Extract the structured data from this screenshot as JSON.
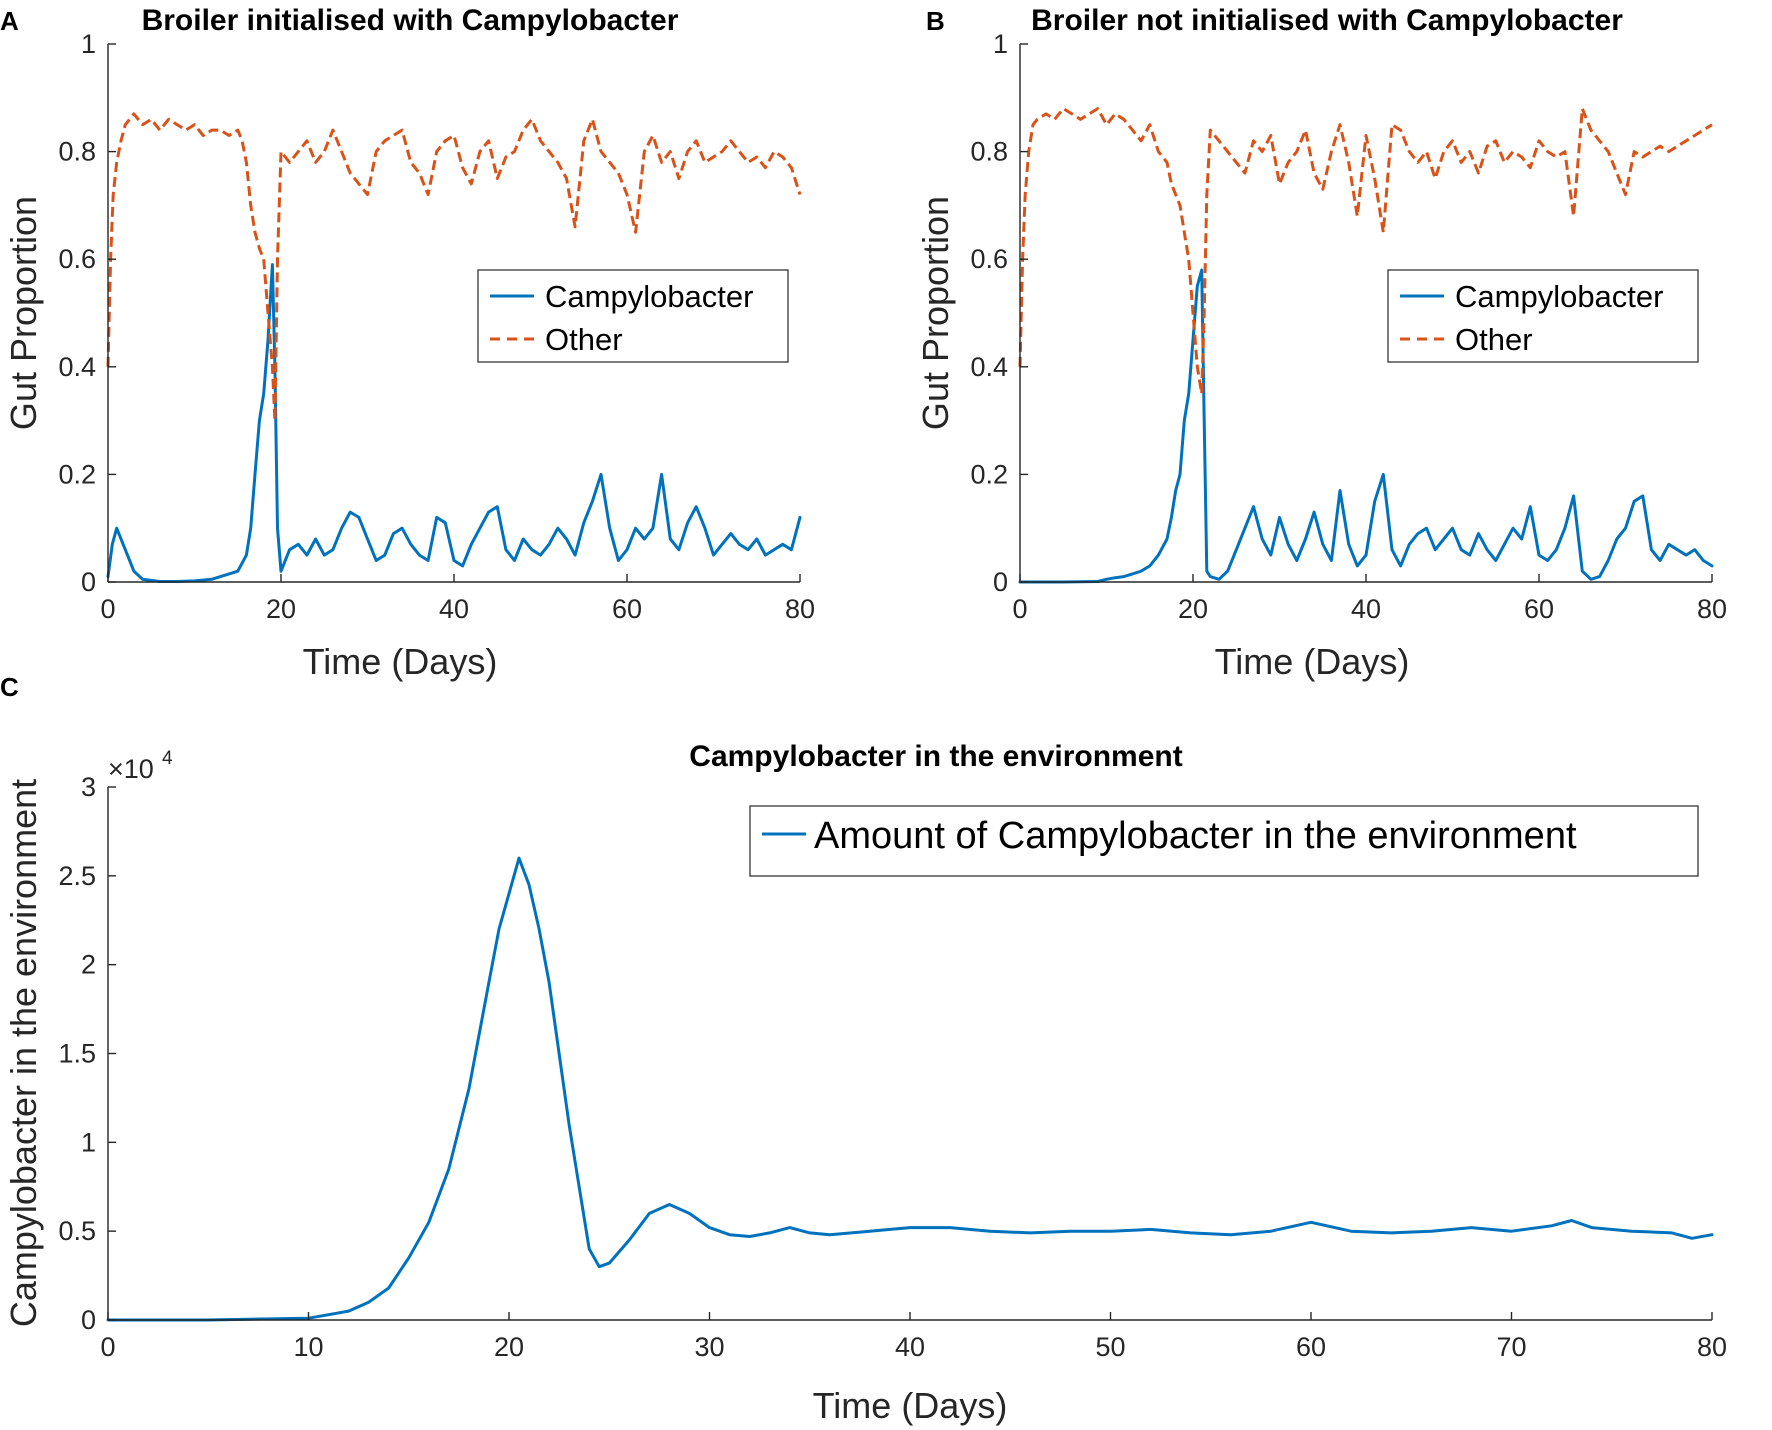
{
  "panels": {
    "a": {
      "letter": "A",
      "title": "Broiler initialised with Campylobacter"
    },
    "b": {
      "letter": "B",
      "title": "Broiler not initialised with Campylobacter"
    },
    "c": {
      "letter": "C",
      "title": "Campylobacter in the environment"
    }
  },
  "colors": {
    "campylobacter": "#0072BD",
    "other": "#D95319"
  },
  "chart_data": [
    {
      "id": "A",
      "type": "line",
      "title": "Broiler initialised with Campylobacter",
      "xlabel": "Time (Days)",
      "ylabel": "Gut Proportion",
      "xlim": [
        0,
        80
      ],
      "ylim": [
        0,
        1
      ],
      "xticks": [
        0,
        20,
        40,
        60,
        80
      ],
      "yticks": [
        0,
        0.2,
        0.4,
        0.6,
        0.8,
        1
      ],
      "ytick_labels": [
        "0",
        "0.2",
        "0.4",
        "0.6",
        "0.8",
        "1"
      ],
      "legend_position": "center-right",
      "series": [
        {
          "name": "Campylobacter",
          "style": "solid",
          "x": [
            0,
            0.5,
            1,
            2,
            3,
            4,
            6,
            8,
            10,
            12,
            13,
            14,
            15,
            16,
            16.5,
            17,
            17.5,
            18,
            18.5,
            19,
            19.3,
            19.6,
            20,
            21,
            22,
            23,
            24,
            25,
            26,
            27,
            28,
            29,
            30,
            31,
            32,
            33,
            34,
            35,
            36,
            37,
            38,
            39,
            40,
            41,
            42,
            43,
            44,
            45,
            46,
            47,
            48,
            49,
            50,
            51,
            52,
            53,
            54,
            55,
            56,
            57,
            58,
            59,
            60,
            61,
            62,
            63,
            64,
            65,
            66,
            67,
            68,
            69,
            70,
            71,
            72,
            73,
            74,
            75,
            76,
            77,
            78,
            79,
            80
          ],
          "values": [
            0.01,
            0.07,
            0.1,
            0.06,
            0.02,
            0.005,
            0.001,
            0.001,
            0.002,
            0.005,
            0.01,
            0.015,
            0.02,
            0.05,
            0.1,
            0.2,
            0.3,
            0.35,
            0.45,
            0.59,
            0.4,
            0.1,
            0.02,
            0.06,
            0.07,
            0.05,
            0.08,
            0.05,
            0.06,
            0.1,
            0.13,
            0.12,
            0.08,
            0.04,
            0.05,
            0.09,
            0.1,
            0.07,
            0.05,
            0.04,
            0.12,
            0.11,
            0.04,
            0.03,
            0.07,
            0.1,
            0.13,
            0.14,
            0.06,
            0.04,
            0.08,
            0.06,
            0.05,
            0.07,
            0.1,
            0.08,
            0.05,
            0.11,
            0.15,
            0.2,
            0.1,
            0.04,
            0.06,
            0.1,
            0.08,
            0.1,
            0.2,
            0.08,
            0.06,
            0.11,
            0.14,
            0.1,
            0.05,
            0.07,
            0.09,
            0.07,
            0.06,
            0.08,
            0.05,
            0.06,
            0.07,
            0.06,
            0.12
          ]
        },
        {
          "name": "Other",
          "style": "dashed",
          "x": [
            0,
            0.3,
            0.6,
            1,
            1.5,
            2,
            3,
            4,
            5,
            6,
            7,
            8,
            9,
            10,
            11,
            12,
            13,
            14,
            15,
            15.5,
            16,
            16.5,
            17,
            17.5,
            18,
            18.5,
            19,
            19.3,
            19.6,
            20,
            21,
            22,
            23,
            24,
            25,
            26,
            27,
            28,
            29,
            30,
            31,
            32,
            33,
            34,
            35,
            36,
            37,
            38,
            39,
            40,
            41,
            42,
            43,
            44,
            45,
            46,
            47,
            48,
            49,
            50,
            51,
            52,
            53,
            54,
            55,
            56,
            57,
            58,
            59,
            60,
            61,
            62,
            63,
            64,
            65,
            66,
            67,
            68,
            69,
            70,
            71,
            72,
            73,
            74,
            75,
            76,
            77,
            78,
            79,
            80
          ],
          "values": [
            0.4,
            0.6,
            0.72,
            0.78,
            0.82,
            0.85,
            0.87,
            0.85,
            0.86,
            0.84,
            0.86,
            0.85,
            0.84,
            0.85,
            0.83,
            0.84,
            0.84,
            0.83,
            0.84,
            0.82,
            0.78,
            0.7,
            0.65,
            0.62,
            0.6,
            0.5,
            0.4,
            0.3,
            0.6,
            0.8,
            0.78,
            0.8,
            0.82,
            0.78,
            0.8,
            0.84,
            0.8,
            0.76,
            0.74,
            0.72,
            0.8,
            0.82,
            0.83,
            0.84,
            0.78,
            0.76,
            0.72,
            0.8,
            0.82,
            0.83,
            0.77,
            0.74,
            0.8,
            0.82,
            0.75,
            0.79,
            0.8,
            0.84,
            0.86,
            0.82,
            0.8,
            0.78,
            0.75,
            0.66,
            0.82,
            0.86,
            0.8,
            0.78,
            0.76,
            0.72,
            0.65,
            0.8,
            0.83,
            0.78,
            0.8,
            0.75,
            0.8,
            0.82,
            0.78,
            0.79,
            0.8,
            0.82,
            0.8,
            0.78,
            0.79,
            0.77,
            0.8,
            0.79,
            0.77,
            0.72
          ]
        }
      ]
    },
    {
      "id": "B",
      "type": "line",
      "title": "Broiler not initialised with Campylobacter",
      "xlabel": "Time (Days)",
      "ylabel": "Gut Proportion",
      "xlim": [
        0,
        80
      ],
      "ylim": [
        0,
        1
      ],
      "xticks": [
        0,
        20,
        40,
        60,
        80
      ],
      "yticks": [
        0,
        0.2,
        0.4,
        0.6,
        0.8,
        1
      ],
      "ytick_labels": [
        "0",
        "0.2",
        "0.4",
        "0.6",
        "0.8",
        "1"
      ],
      "legend_position": "center-right",
      "series": [
        {
          "name": "Campylobacter",
          "style": "solid",
          "x": [
            0,
            5,
            9,
            10,
            11,
            12,
            13,
            14,
            15,
            16,
            17,
            17.5,
            18,
            18.5,
            19,
            19.5,
            20,
            20.5,
            21,
            21.3,
            21.6,
            22,
            23,
            24,
            25,
            26,
            27,
            28,
            29,
            30,
            31,
            32,
            33,
            34,
            35,
            36,
            37,
            38,
            39,
            40,
            41,
            42,
            43,
            44,
            45,
            46,
            47,
            48,
            49,
            50,
            51,
            52,
            53,
            54,
            55,
            56,
            57,
            58,
            59,
            60,
            61,
            62,
            63,
            64,
            65,
            66,
            67,
            68,
            69,
            70,
            71,
            72,
            73,
            74,
            75,
            76,
            77,
            78,
            79,
            80
          ],
          "values": [
            0,
            0,
            0.001,
            0.005,
            0.008,
            0.01,
            0.015,
            0.02,
            0.03,
            0.05,
            0.08,
            0.12,
            0.17,
            0.2,
            0.3,
            0.35,
            0.45,
            0.55,
            0.58,
            0.3,
            0.02,
            0.01,
            0.005,
            0.02,
            0.06,
            0.1,
            0.14,
            0.08,
            0.05,
            0.12,
            0.07,
            0.04,
            0.08,
            0.13,
            0.07,
            0.04,
            0.17,
            0.07,
            0.03,
            0.05,
            0.15,
            0.2,
            0.06,
            0.03,
            0.07,
            0.09,
            0.1,
            0.06,
            0.08,
            0.1,
            0.06,
            0.05,
            0.09,
            0.06,
            0.04,
            0.07,
            0.1,
            0.08,
            0.14,
            0.05,
            0.04,
            0.06,
            0.1,
            0.16,
            0.02,
            0.005,
            0.01,
            0.04,
            0.08,
            0.1,
            0.15,
            0.16,
            0.06,
            0.04,
            0.07,
            0.06,
            0.05,
            0.06,
            0.04,
            0.03
          ]
        },
        {
          "name": "Other",
          "style": "dashed",
          "x": [
            0,
            0.3,
            0.6,
            1,
            1.5,
            2,
            3,
            4,
            5,
            6,
            7,
            8,
            9,
            10,
            11,
            12,
            13,
            14,
            15,
            16,
            17,
            17.5,
            18,
            18.5,
            19,
            19.5,
            20,
            20.5,
            21,
            21.3,
            21.6,
            22,
            23,
            24,
            25,
            26,
            27,
            28,
            29,
            30,
            31,
            32,
            33,
            34,
            35,
            36,
            37,
            38,
            39,
            40,
            41,
            42,
            43,
            44,
            45,
            46,
            47,
            48,
            49,
            50,
            51,
            52,
            53,
            54,
            55,
            56,
            57,
            58,
            59,
            60,
            61,
            62,
            63,
            64,
            65,
            66,
            67,
            68,
            69,
            70,
            71,
            72,
            73,
            74,
            75,
            76,
            77,
            78,
            79,
            80
          ],
          "values": [
            0.4,
            0.6,
            0.72,
            0.8,
            0.85,
            0.86,
            0.87,
            0.86,
            0.88,
            0.87,
            0.86,
            0.87,
            0.88,
            0.85,
            0.87,
            0.86,
            0.84,
            0.82,
            0.85,
            0.8,
            0.78,
            0.74,
            0.72,
            0.7,
            0.65,
            0.6,
            0.5,
            0.4,
            0.35,
            0.5,
            0.72,
            0.84,
            0.82,
            0.8,
            0.78,
            0.76,
            0.82,
            0.8,
            0.83,
            0.74,
            0.78,
            0.8,
            0.84,
            0.76,
            0.73,
            0.8,
            0.85,
            0.78,
            0.68,
            0.83,
            0.75,
            0.65,
            0.85,
            0.84,
            0.8,
            0.78,
            0.8,
            0.75,
            0.8,
            0.82,
            0.78,
            0.8,
            0.76,
            0.81,
            0.82,
            0.78,
            0.8,
            0.79,
            0.77,
            0.82,
            0.8,
            0.79,
            0.8,
            0.68,
            0.88,
            0.84,
            0.82,
            0.8,
            0.76,
            0.72,
            0.8,
            0.79,
            0.8,
            0.81,
            0.8,
            0.81,
            0.82,
            0.83,
            0.84,
            0.85
          ]
        }
      ]
    },
    {
      "id": "C",
      "type": "line",
      "title": "Campylobacter in the environment",
      "xlabel": "Time (Days)",
      "ylabel": "Campylobacter in the environment",
      "multiplier_label": "×10",
      "multiplier_exponent": "4",
      "xlim": [
        0,
        80
      ],
      "ylim": [
        0,
        3
      ],
      "xticks": [
        0,
        10,
        20,
        30,
        40,
        50,
        60,
        70,
        80
      ],
      "yticks": [
        0,
        0.5,
        1,
        1.5,
        2,
        2.5,
        3
      ],
      "ytick_labels": [
        "0",
        "0.5",
        "1",
        "1.5",
        "2",
        "2.5",
        "3"
      ],
      "legend_position": "top-right",
      "series": [
        {
          "name": "Amount of Campylobacter in the environment",
          "style": "solid",
          "x": [
            0,
            5,
            10,
            11,
            12,
            13,
            14,
            15,
            16,
            17,
            18,
            19,
            19.5,
            20,
            20.5,
            21,
            21.5,
            22,
            23,
            24,
            24.5,
            25,
            26,
            27,
            28,
            29,
            30,
            31,
            32,
            33,
            34,
            35,
            36,
            38,
            40,
            42,
            44,
            46,
            48,
            50,
            52,
            54,
            56,
            58,
            60,
            62,
            64,
            66,
            68,
            70,
            72,
            73,
            74,
            76,
            78,
            79,
            80
          ],
          "values": [
            0,
            0,
            0.01,
            0.03,
            0.05,
            0.1,
            0.18,
            0.35,
            0.55,
            0.85,
            1.3,
            1.9,
            2.2,
            2.4,
            2.6,
            2.45,
            2.2,
            1.9,
            1.1,
            0.4,
            0.3,
            0.32,
            0.45,
            0.6,
            0.65,
            0.6,
            0.52,
            0.48,
            0.47,
            0.49,
            0.52,
            0.49,
            0.48,
            0.5,
            0.52,
            0.52,
            0.5,
            0.49,
            0.5,
            0.5,
            0.51,
            0.49,
            0.48,
            0.5,
            0.55,
            0.5,
            0.49,
            0.5,
            0.52,
            0.5,
            0.53,
            0.56,
            0.52,
            0.5,
            0.49,
            0.46,
            0.48
          ]
        }
      ]
    }
  ]
}
